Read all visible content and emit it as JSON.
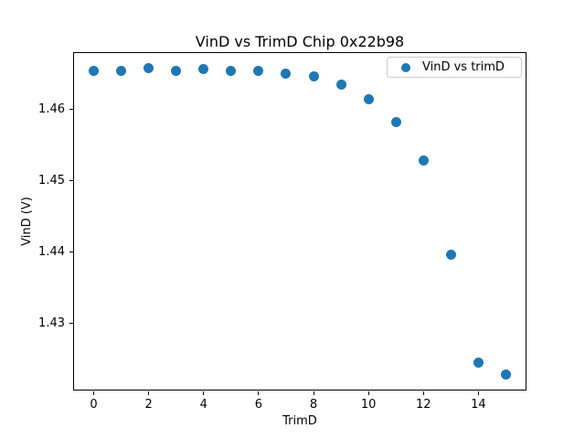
{
  "title": "VinD vs TrimD Chip 0x22b98",
  "axes": {
    "xlabel": "TrimD",
    "ylabel": "VinD (V)"
  },
  "legend": {
    "label": "VinD vs trimD"
  },
  "colors": {
    "marker": "#1f77b4",
    "legend_border": "#cccccc",
    "spine": "#000000",
    "background": "#ffffff"
  },
  "chart_data": {
    "type": "scatter",
    "title": "VinD vs TrimD Chip 0x22b98",
    "xlabel": "TrimD",
    "ylabel": "VinD (V)",
    "legend_entries": [
      "VinD vs trimD"
    ],
    "legend_position": "upper right",
    "grid": false,
    "x": [
      0,
      1,
      2,
      3,
      4,
      5,
      6,
      7,
      8,
      9,
      10,
      11,
      12,
      13,
      14,
      15
    ],
    "y": [
      1.4653,
      1.4653,
      1.4657,
      1.4653,
      1.4656,
      1.4654,
      1.4653,
      1.4649,
      1.4646,
      1.4634,
      1.4614,
      1.4582,
      1.4528,
      1.4396,
      1.4245,
      1.4229
    ],
    "xlim": [
      -0.75,
      15.75
    ],
    "ylim": [
      1.4206,
      1.4679
    ],
    "xticks": [
      0,
      2,
      4,
      6,
      8,
      10,
      12,
      14
    ],
    "xtick_labels": [
      "0",
      "2",
      "4",
      "6",
      "8",
      "10",
      "12",
      "14"
    ],
    "yticks": [
      1.43,
      1.44,
      1.45,
      1.46
    ],
    "ytick_labels": [
      "1.43",
      "1.44",
      "1.45",
      "1.46"
    ],
    "marker_color": "#1f77b4"
  }
}
